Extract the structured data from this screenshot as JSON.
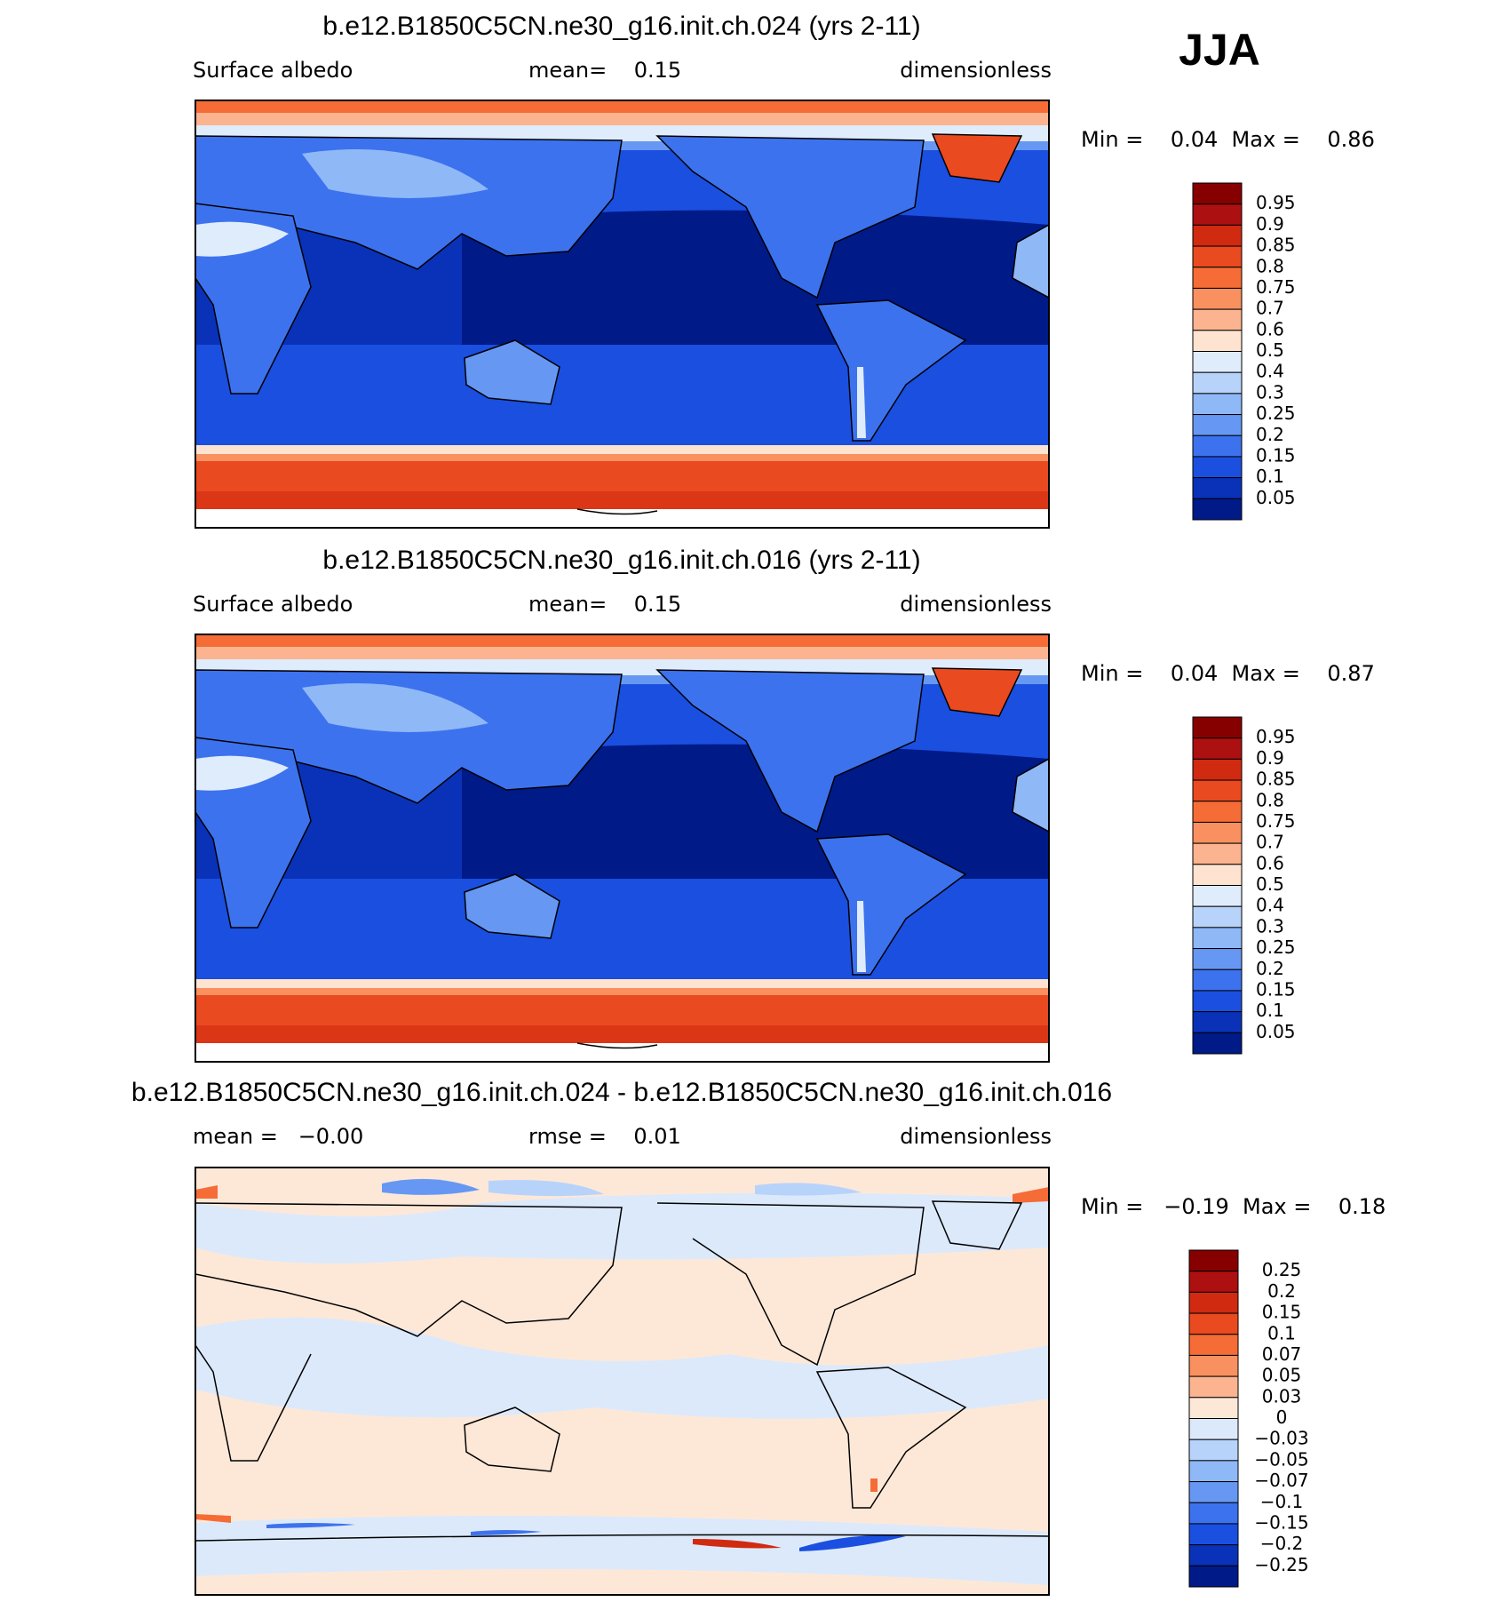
{
  "label": "JJA",
  "panels": [
    {
      "title": "b.e12.B1850C5CN.ne30_g16.init.ch.024 (yrs 2-11)",
      "subtitle": {
        "left": "Surface albedo",
        "center": "mean=    0.15",
        "right": "dimensionless"
      },
      "min_max": "Min =    0.04  Max =    0.86",
      "colorbar": {
        "labels": [
          "0.95",
          "0.9",
          "0.85",
          "0.8",
          "0.75",
          "0.7",
          "0.6",
          "0.5",
          "0.4",
          "0.3",
          "0.25",
          "0.2",
          "0.15",
          "0.1",
          "0.05"
        ],
        "colors": [
          "#870000",
          "#ad1010",
          "#d02a10",
          "#ea4a1f",
          "#f56c36",
          "#f8905f",
          "#fbb48f",
          "#fde3d0",
          "#dfecfb",
          "#b8d3fa",
          "#8fb8f7",
          "#6698f3",
          "#3d72ee",
          "#1a4fe0",
          "#0a32b8",
          "#001a88"
        ]
      }
    },
    {
      "title": "b.e12.B1850C5CN.ne30_g16.init.ch.016 (yrs 2-11)",
      "subtitle": {
        "left": "Surface albedo",
        "center": "mean=    0.15",
        "right": "dimensionless"
      },
      "min_max": "Min =    0.04  Max =    0.87",
      "colorbar": {
        "labels": [
          "0.95",
          "0.9",
          "0.85",
          "0.8",
          "0.75",
          "0.7",
          "0.6",
          "0.5",
          "0.4",
          "0.3",
          "0.25",
          "0.2",
          "0.15",
          "0.1",
          "0.05"
        ],
        "colors": [
          "#870000",
          "#ad1010",
          "#d02a10",
          "#ea4a1f",
          "#f56c36",
          "#f8905f",
          "#fbb48f",
          "#fde3d0",
          "#dfecfb",
          "#b8d3fa",
          "#8fb8f7",
          "#6698f3",
          "#3d72ee",
          "#1a4fe0",
          "#0a32b8",
          "#001a88"
        ]
      }
    },
    {
      "title": "b.e12.B1850C5CN.ne30_g16.init.ch.024 - b.e12.B1850C5CN.ne30_g16.init.ch.016",
      "subtitle": {
        "left": "mean =   −0.00",
        "center": "rmse =    0.01",
        "right": "dimensionless"
      },
      "min_max": "Min =   −0.19  Max =    0.18",
      "colorbar": {
        "labels": [
          "0.25",
          "0.2",
          "0.15",
          "0.1",
          "0.07",
          "0.05",
          "0.03",
          "0",
          "−0.03",
          "−0.05",
          "−0.07",
          "−0.1",
          "−0.15",
          "−0.2",
          "−0.25"
        ],
        "colors": [
          "#870000",
          "#ad1010",
          "#d02a10",
          "#ea4a1f",
          "#f56c36",
          "#f8905f",
          "#fbb48f",
          "#fde8d8",
          "#dce9fb",
          "#b8d3fa",
          "#8fb8f7",
          "#6698f3",
          "#3d72ee",
          "#1a4fe0",
          "#0a32b8",
          "#001a88"
        ]
      }
    }
  ]
}
